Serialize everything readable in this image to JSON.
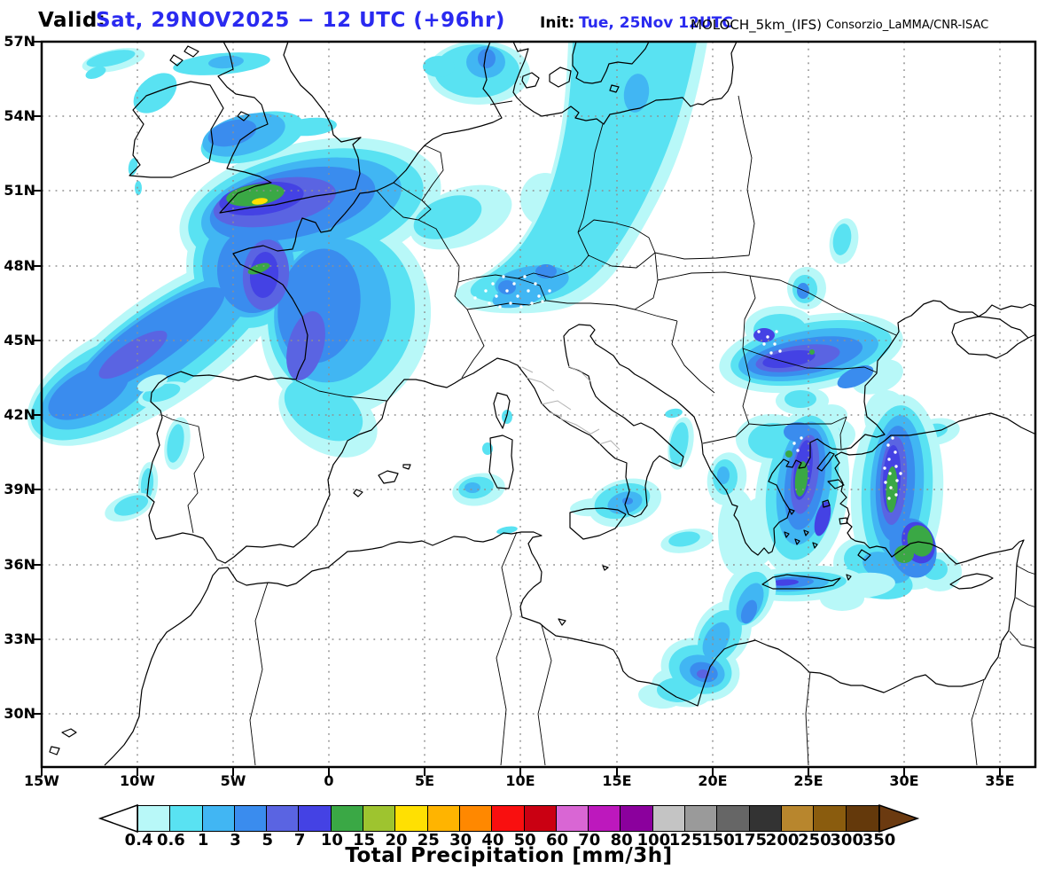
{
  "header": {
    "valid_label": "Valid:",
    "valid_value": "Sat, 29NOV2025 − 12 UTC (+96hr)",
    "init_label": "Init:",
    "init_value": "Tue, 25Nov 12UTC",
    "model": "MOLOCH_5km_(IFS)",
    "credit": "Consorzio_LaMMA/CNR-ISAC",
    "accent_color": "#2a2af0"
  },
  "map": {
    "lat_labels": [
      "57N",
      "54N",
      "51N",
      "48N",
      "45N",
      "42N",
      "39N",
      "36N",
      "33N",
      "30N"
    ],
    "lon_labels": [
      "15W",
      "10W",
      "5W",
      "0",
      "5E",
      "10E",
      "15E",
      "20E",
      "25E",
      "30E",
      "35E"
    ]
  },
  "colorbar": {
    "title": "Total Precipitation [mm/3h]",
    "tick_labels": [
      "0.4",
      "0.6",
      "1",
      "3",
      "5",
      "7",
      "10",
      "15",
      "20",
      "25",
      "30",
      "40",
      "50",
      "60",
      "70",
      "80",
      "100",
      "125",
      "150",
      "175",
      "200",
      "250",
      "300",
      "350"
    ],
    "cell_colors": [
      "#b8f8f8",
      "#59e2f2",
      "#41b6f3",
      "#3a8cee",
      "#5a64e2",
      "#4442e4",
      "#3aa845",
      "#9ec42f",
      "#ffe002",
      "#ffb400",
      "#ff8800",
      "#f90f0f",
      "#ca0012",
      "#d966d4",
      "#bd18bd",
      "#8b009d",
      "#c4c4c4",
      "#9a9a9a",
      "#666666",
      "#333333",
      "#b8862d",
      "#8a5c0e",
      "#64390b"
    ],
    "underflow_color": "#ffffff",
    "overflow_color": "#6b3a10"
  },
  "chart_data": {
    "type": "heatmap",
    "subtype": "filled-contour precipitation forecast map",
    "title": "Total Precipitation [mm/3h]",
    "valid_time": "Sat, 29NOV2025 − 12 UTC (+96hr)",
    "init_time": "Tue, 25Nov 12UTC",
    "model": "MOLOCH_5km_(IFS)",
    "source": "Consorzio_LaMMA/CNR-ISAC",
    "extent": {
      "lon_min_deg": -15,
      "lon_max_deg": 37,
      "lat_min_deg": 27.8,
      "lat_max_deg": 57
    },
    "graticule": {
      "lat_step_deg": 3,
      "lon_step_deg": 5,
      "style": "dotted gray"
    },
    "scale_mm_3h": [
      0.4,
      0.6,
      1,
      3,
      5,
      7,
      10,
      15,
      20,
      25,
      30,
      40,
      50,
      60,
      70,
      80,
      100,
      125,
      150,
      175,
      200,
      250,
      300,
      350
    ],
    "scale_colors": [
      "#b8f8f8",
      "#59e2f2",
      "#41b6f3",
      "#3a8cee",
      "#5a64e2",
      "#4442e4",
      "#3aa845",
      "#9ec42f",
      "#ffe002",
      "#ffb400",
      "#ff8800",
      "#f90f0f",
      "#ca0012",
      "#d966d4",
      "#bd18bd",
      "#8b009d",
      "#c4c4c4",
      "#9a9a9a",
      "#666666",
      "#333333",
      "#b8862d",
      "#8a5c0e",
      "#64390b"
    ],
    "legend_position": "bottom",
    "precip_regions": [
      {
        "name": "Atlantic front: S England / English Channel core",
        "approx_lon": -4.0,
        "approx_lat": 50.3,
        "max_mm_3h": 25
      },
      {
        "name": "Atlantic front: SW band to Biscay / open Atlantic",
        "approx_lon": -11,
        "approx_lat": 44.5,
        "max_mm_3h": 5
      },
      {
        "name": "Brittany south-coast core",
        "approx_lon": -3.7,
        "approx_lat": 47.9,
        "max_mm_3h": 15
      },
      {
        "name": "NW France interior band",
        "approx_lon": -0.5,
        "approx_lat": 46.5,
        "max_mm_3h": 7
      },
      {
        "name": "Scotland / North Sea streaks",
        "approx_lon": -5,
        "approx_lat": 56.5,
        "max_mm_3h": 1
      },
      {
        "name": "Irish Sea patch",
        "approx_lon": -4.5,
        "approx_lat": 53.3,
        "max_mm_3h": 3
      },
      {
        "name": "West Denmark blob",
        "approx_lon": 7.8,
        "approx_lat": 55.8,
        "max_mm_3h": 3
      },
      {
        "name": "Baltic-to-Alps band (E Germany / Czech border)",
        "approx_lon": 14,
        "approx_lat": 52,
        "max_mm_3h": 1,
        "snow_stipple": true
      },
      {
        "name": "Alpine foothills core",
        "approx_lon": 10.5,
        "approx_lat": 47.3,
        "max_mm_3h": 3,
        "snow_stipple": true
      },
      {
        "name": "S Romania / N Bulgaria elongated band",
        "approx_lon": 25,
        "approx_lat": 44.4,
        "max_mm_3h": 10,
        "snow_stipple": true
      },
      {
        "name": "Carpathian specks",
        "approx_lon": 26.8,
        "approx_lat": 49,
        "max_mm_3h": 3
      },
      {
        "name": "N Aegean / Chalkidiki band",
        "approx_lon": 24.7,
        "approx_lat": 39.4,
        "max_mm_3h": 15
      },
      {
        "name": "W Turkey / E Aegean band",
        "approx_lon": 29.5,
        "approx_lat": 39,
        "max_mm_3h": 20,
        "snow_stipple": true
      },
      {
        "name": "SW Turkey coast green cores",
        "approx_lon": 30.8,
        "approx_lat": 36.9,
        "max_mm_3h": 15
      },
      {
        "name": "Crete band",
        "approx_lon": 24.5,
        "approx_lat": 35.2,
        "max_mm_3h": 7
      },
      {
        "name": "Libya coast / Gulf of Sirte arc",
        "approx_lon": 19.5,
        "approx_lat": 31.6,
        "max_mm_3h": 5
      },
      {
        "name": "Portugal / Galicia coastal streaks",
        "approx_lon": -9,
        "approx_lat": 40.5,
        "max_mm_3h": 1
      },
      {
        "name": "NE Sicily / Calabria patch",
        "approx_lon": 15.4,
        "approx_lat": 38.4,
        "max_mm_3h": 3
      },
      {
        "name": "SW Sardinia patch",
        "approx_lon": 7.8,
        "approx_lat": 38.9,
        "max_mm_3h": 1
      },
      {
        "name": "Adriatic / Albania coastal streaks",
        "approx_lon": 18.5,
        "approx_lat": 40.8,
        "max_mm_3h": 1
      }
    ]
  }
}
